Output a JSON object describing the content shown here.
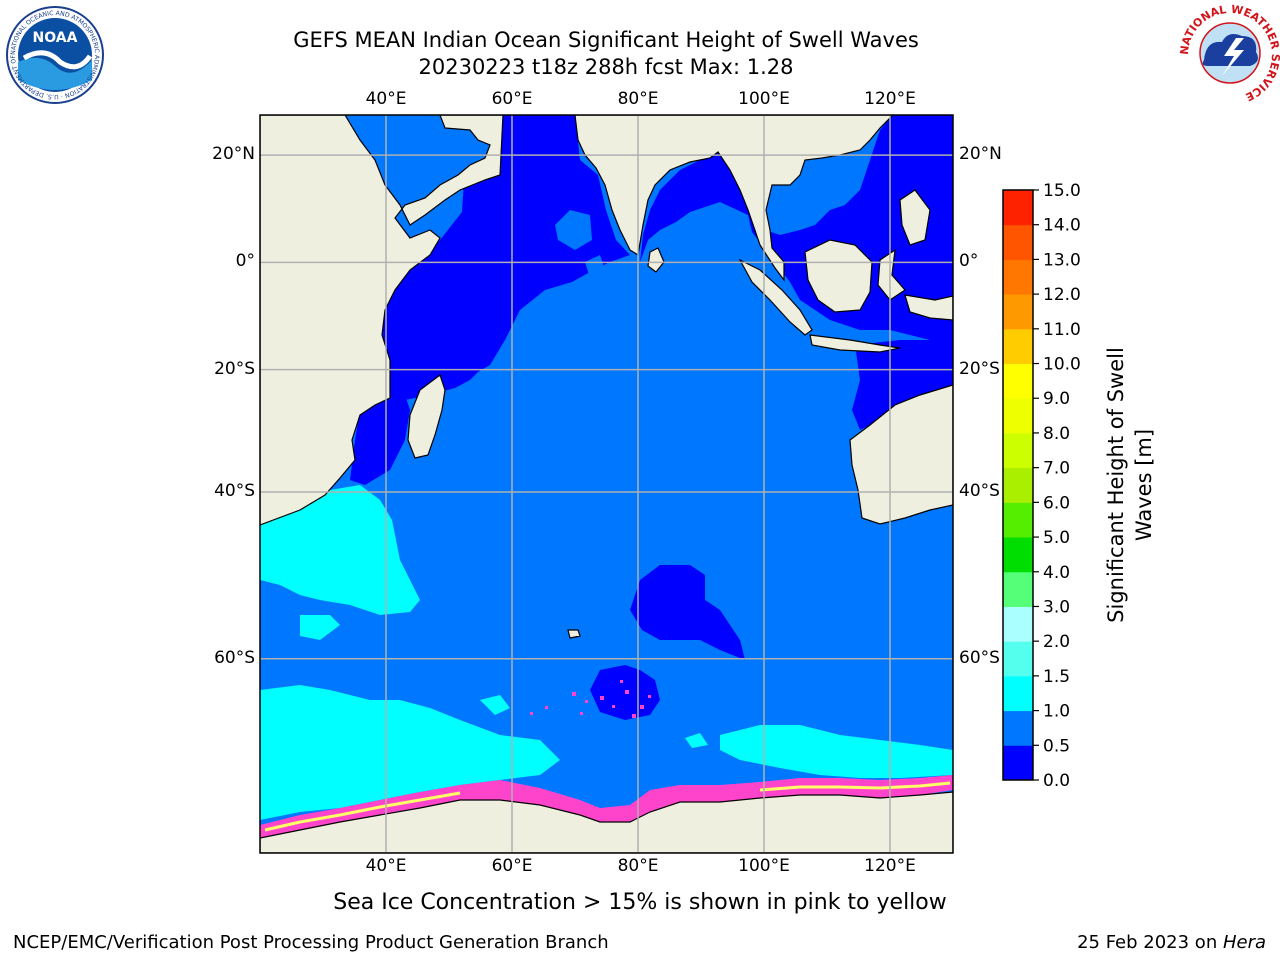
{
  "header": {
    "title_line1": "GEFS MEAN Indian Ocean Significant Height of Swell Waves",
    "title_line2": "20230223 t18z 288h fcst   Max: 1.28"
  },
  "logos": {
    "noaa_center_text": "NOAA",
    "noaa_ring_text": "NATIONAL OCEANIC AND ATMOSPHERIC ADMINISTRATION · U.S. DEPARTMENT OF COMMERCE",
    "nws_ring_text": "NATIONAL WEATHER SERVICE"
  },
  "map": {
    "lon_labels": [
      "40°E",
      "60°E",
      "80°E",
      "100°E",
      "120°E"
    ],
    "lat_labels": [
      "20°N",
      "0°",
      "20°S",
      "40°S",
      "60°S"
    ],
    "lon_values": [
      40,
      60,
      80,
      100,
      120
    ],
    "lat_values": [
      20,
      0,
      -20,
      -40,
      -60
    ],
    "lon_range": [
      20,
      130
    ],
    "lat_range": [
      -74,
      27
    ],
    "projection": "mercator",
    "grid": true,
    "colors": {
      "land": "#efefdf",
      "ocean_0_05": "#0000ff",
      "ocean_05_10": "#0077ff",
      "ocean_10_15": "#00ffff",
      "sea_ice_pink": "#ff44cc",
      "sea_ice_yellow": "#ffff66",
      "grid": "#b0b0b0"
    }
  },
  "colorbar": {
    "label": "Significant Height of Swell Waves [m]",
    "ticks": [
      "0.0",
      "0.5",
      "1.0",
      "1.5",
      "2.0",
      "3.0",
      "4.0",
      "5.0",
      "6.0",
      "7.0",
      "8.0",
      "9.0",
      "10.0",
      "11.0",
      "12.0",
      "13.0",
      "14.0",
      "15.0"
    ],
    "colors": [
      "#0000ff",
      "#0077ff",
      "#00ffff",
      "#55ffee",
      "#aaffff",
      "#55ff77",
      "#00dd00",
      "#55ee00",
      "#aaee00",
      "#ccff00",
      "#eeff00",
      "#ffff00",
      "#ffcc00",
      "#ff9900",
      "#ff7700",
      "#ff5500",
      "#ff2200"
    ]
  },
  "notes": {
    "sea_ice_note": "Sea Ice Concentration > 15% is shown in pink to yellow"
  },
  "footer": {
    "left": "NCEP/EMC/Verification Post Processing Product Generation Branch",
    "right_prefix": "25 Feb 2023 on ",
    "right_host": "Hera"
  }
}
